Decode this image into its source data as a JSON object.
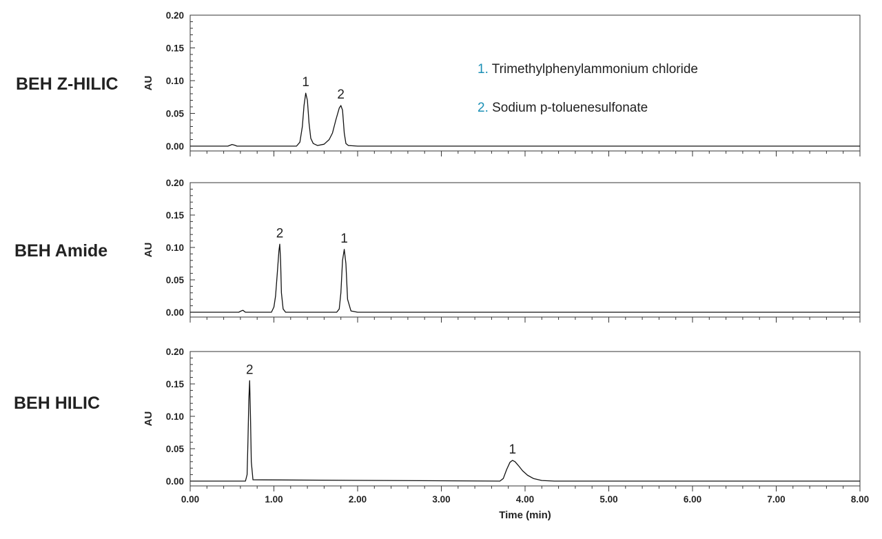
{
  "chart_data": [
    {
      "type": "line",
      "panel_label": "BEH Z-HILIC",
      "ylabel": "AU",
      "xlabel": "",
      "xlim": [
        0,
        8
      ],
      "ylim": [
        0,
        0.2
      ],
      "yticks": [
        "0.00",
        "0.05",
        "0.10",
        "0.15",
        "0.20"
      ],
      "x": [
        0,
        0.45,
        0.48,
        0.5,
        0.53,
        0.56,
        1.27,
        1.31,
        1.34,
        1.36,
        1.38,
        1.4,
        1.42,
        1.44,
        1.47,
        1.52,
        1.6,
        1.66,
        1.7,
        1.74,
        1.78,
        1.8,
        1.82,
        1.84,
        1.86,
        1.89,
        2,
        8
      ],
      "y": [
        0,
        0,
        0.0015,
        0.0025,
        0.0015,
        0,
        0,
        0.006,
        0.03,
        0.062,
        0.081,
        0.07,
        0.035,
        0.012,
        0.004,
        0.001,
        0.003,
        0.01,
        0.02,
        0.04,
        0.058,
        0.062,
        0.055,
        0.02,
        0.004,
        0.001,
        0,
        0
      ],
      "peaks": [
        {
          "label": "1",
          "x": 1.38,
          "y": 0.081
        },
        {
          "label": "2",
          "x": 1.8,
          "y": 0.062
        }
      ],
      "legend": [
        {
          "num": "1.",
          "text": "Trimethylphenylammonium chloride"
        },
        {
          "num": "2.",
          "text": "Sodium p-toluenesulfonate"
        }
      ]
    },
    {
      "type": "line",
      "panel_label": "BEH Amide",
      "ylabel": "AU",
      "xlabel": "",
      "xlim": [
        0,
        8
      ],
      "ylim": [
        0,
        0.2
      ],
      "yticks": [
        "0.00",
        "0.05",
        "0.10",
        "0.15",
        "0.20"
      ],
      "x": [
        0,
        0.58,
        0.61,
        0.63,
        0.66,
        0.97,
        1,
        1.02,
        1.04,
        1.06,
        1.07,
        1.08,
        1.09,
        1.11,
        1.14,
        1.75,
        1.78,
        1.8,
        1.82,
        1.84,
        1.86,
        1.88,
        1.92,
        2,
        8
      ],
      "y": [
        0,
        0,
        0.002,
        0.003,
        0,
        0,
        0.008,
        0.025,
        0.06,
        0.095,
        0.105,
        0.08,
        0.03,
        0.005,
        0,
        0,
        0.005,
        0.03,
        0.08,
        0.097,
        0.075,
        0.02,
        0.002,
        0,
        0
      ],
      "peaks": [
        {
          "label": "2",
          "x": 1.07,
          "y": 0.105
        },
        {
          "label": "1",
          "x": 1.84,
          "y": 0.097
        }
      ]
    },
    {
      "type": "line",
      "panel_label": "BEH HILIC",
      "ylabel": "AU",
      "xlabel": "Time (min)",
      "xlim": [
        0,
        8
      ],
      "ylim": [
        0,
        0.2
      ],
      "yticks": [
        "0.00",
        "0.05",
        "0.10",
        "0.15",
        "0.20"
      ],
      "xticks": [
        "0.00",
        "1.00",
        "2.00",
        "3.00",
        "4.00",
        "5.00",
        "6.00",
        "7.00",
        "8.00"
      ],
      "x": [
        0,
        0.66,
        0.68,
        0.69,
        0.7,
        0.71,
        0.72,
        0.73,
        0.75,
        3.7,
        3.74,
        3.78,
        3.82,
        3.85,
        3.88,
        3.92,
        3.97,
        4.03,
        4.1,
        4.2,
        4.35,
        8
      ],
      "y": [
        0,
        0,
        0.01,
        0.06,
        0.125,
        0.155,
        0.1,
        0.03,
        0.002,
        0,
        0.004,
        0.018,
        0.029,
        0.032,
        0.03,
        0.024,
        0.016,
        0.009,
        0.004,
        0.001,
        0,
        0
      ],
      "peaks": [
        {
          "label": "2",
          "x": 0.71,
          "y": 0.155
        },
        {
          "label": "1",
          "x": 3.85,
          "y": 0.032
        }
      ]
    }
  ]
}
